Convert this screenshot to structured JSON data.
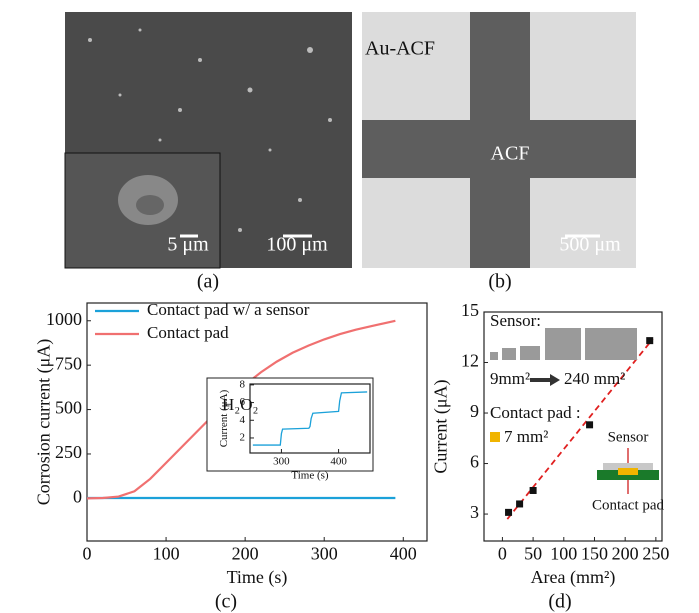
{
  "panels": {
    "a": {
      "label": "(a)",
      "scale_bar": "100 μm",
      "inset_scale_bar": "5 μm"
    },
    "b": {
      "label": "(b)",
      "outer_text": "Au-ACF",
      "inner_text": "ACF",
      "scale_bar": "500 μm"
    },
    "c": {
      "label": "(c)"
    },
    "d": {
      "label": "(d)"
    }
  },
  "chart_data": [
    {
      "type": "line",
      "x_label": "Time (s)",
      "y_label": "Corrosion current (μA)",
      "x": [
        0,
        20,
        40,
        60,
        80,
        100,
        120,
        140,
        160,
        180,
        200,
        220,
        240,
        260,
        280,
        300,
        320,
        340,
        360,
        380,
        390
      ],
      "series": [
        {
          "name": "Contact pad w/ a sensor",
          "color": "#1ba1d9",
          "values": [
            2,
            2,
            2,
            2,
            2,
            2,
            2,
            2,
            2,
            2,
            2,
            2,
            2,
            2,
            2,
            2,
            2,
            2,
            2,
            2,
            2
          ]
        },
        {
          "name": "Contact pad",
          "color": "#f07070",
          "values": [
            0,
            2,
            10,
            40,
            110,
            200,
            290,
            380,
            470,
            560,
            640,
            710,
            770,
            820,
            860,
            895,
            925,
            950,
            970,
            990,
            1000
          ]
        }
      ],
      "xlim": [
        0,
        430
      ],
      "xticks": [
        0,
        100,
        200,
        300,
        400
      ],
      "ylim": [
        -240,
        1100
      ],
      "yticks": [
        0,
        250,
        500,
        750,
        1000
      ],
      "legend": "upper left"
    },
    {
      "type": "line",
      "title": "H₂O₂",
      "x_label": "Time (s)",
      "y_label": "Current (μA)",
      "x": [
        250,
        298,
        300,
        302,
        348,
        350,
        352,
        355,
        400,
        402,
        405,
        450
      ],
      "series": [
        {
          "name": null,
          "color": "#1ba1d9",
          "values": [
            1.2,
            1.2,
            2.5,
            3,
            3.1,
            3.3,
            4.2,
            4.8,
            5,
            6.2,
            7.1,
            7.2
          ]
        }
      ],
      "xlim": [
        245,
        455
      ],
      "xticks": [
        300,
        400
      ],
      "ylim": [
        0.3,
        8.1
      ],
      "yticks": [
        2,
        4,
        6,
        8
      ]
    },
    {
      "type": "scatter",
      "x_label": "Area (mm²)",
      "y_label": "Current (μA)",
      "x": [
        10,
        28,
        50,
        142,
        240
      ],
      "values": [
        3.1,
        3.6,
        4.4,
        8.3,
        13.3
      ],
      "color": "#111111",
      "trendline": {
        "x": [
          8,
          245
        ],
        "values": [
          2.7,
          13.4
        ],
        "color": "#e02020",
        "style": "dashed"
      },
      "xlim": [
        -30,
        260
      ],
      "xticks": [
        0,
        50,
        100,
        150,
        200,
        250
      ],
      "ylim": [
        1.4,
        15
      ],
      "yticks": [
        3,
        6,
        9,
        12,
        15
      ],
      "annotations": [
        "Sensor:",
        "9mm²",
        "240 mm²",
        "Contact pad :",
        "7 mm²",
        "Sensor",
        "Contact pad"
      ]
    }
  ]
}
